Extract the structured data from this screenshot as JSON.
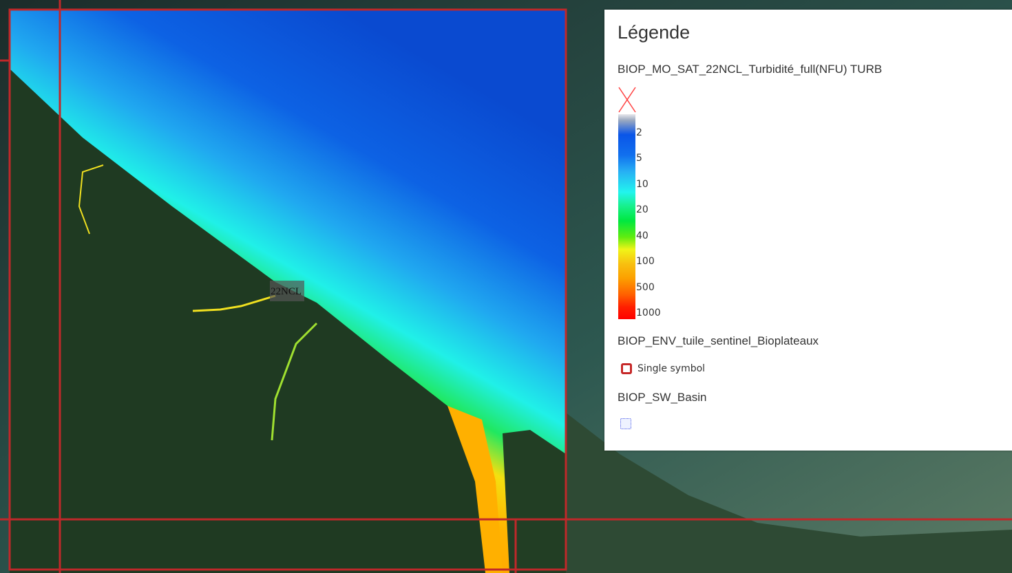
{
  "map": {
    "tile_label": "22NCL",
    "colors": {
      "grid_line": "#c0282a",
      "land": "#1e3a22",
      "ocean_deep": "#0a4fd8"
    }
  },
  "legend": {
    "title": "Légende",
    "layers": [
      {
        "name": "BIOP_MO_SAT_22NCL_Turbidité_full(NFU) TURB",
        "nodata_icon": "red-x-icon",
        "ramp_labels": [
          "2",
          "5",
          "10",
          "20",
          "40",
          "100",
          "500",
          "1000"
        ]
      },
      {
        "name": "BIOP_ENV_tuile_sentinel_Bioplateaux",
        "symbol_label": "Single symbol",
        "symbol_color": "#c62828"
      },
      {
        "name": "BIOP_SW_Basin",
        "symbol_color": "#4a5ae8"
      }
    ]
  }
}
